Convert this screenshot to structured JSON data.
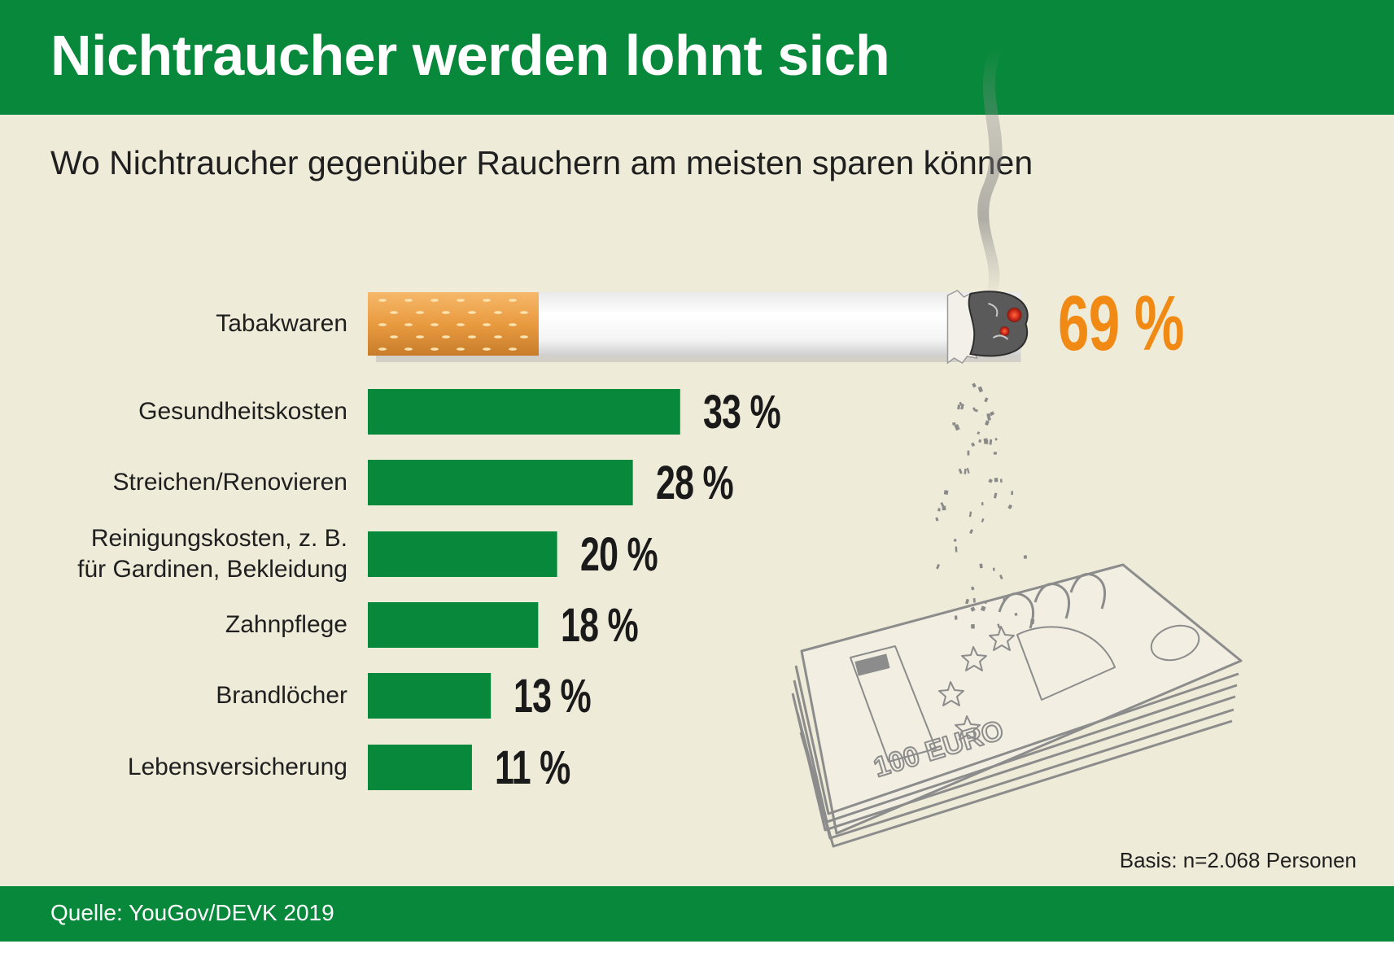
{
  "header": {
    "title": "Nichtraucher werden lohnt sich"
  },
  "subtitle": "Wo Nichtraucher gegenüber Rauchern am meisten sparen können",
  "chart_data": {
    "type": "bar",
    "orientation": "horizontal",
    "categories": [
      "Tabakwaren",
      "Gesundheitskosten",
      "Streichen/Renovieren",
      "Reinigungskosten, z. B.|für Gardinen, Bekleidung",
      "Zahnpflege",
      "Brandlöcher",
      "Lebensversicherung"
    ],
    "values": [
      69,
      33,
      28,
      20,
      18,
      13,
      11
    ],
    "value_labels": [
      "69 %",
      "33 %",
      "28 %",
      "20 %",
      "18 %",
      "13 %",
      "11 %"
    ],
    "unit": "%",
    "highlight_index": 0,
    "highlight_style": "cigarette",
    "xlim": [
      0,
      100
    ],
    "colors": {
      "bar": "#07883a",
      "highlight_label": "#f08a14",
      "label": "#1a1a1a"
    },
    "grid": false,
    "legend": "none"
  },
  "footnote": "Basis: n=2.068 Personen",
  "footer": {
    "source": "Quelle: YouGov/DEVK 2019"
  },
  "colors": {
    "brand": "#07883a",
    "background": "#efebd9"
  },
  "illustration": {
    "icon": "burning-cigarette-over-banknotes-icon",
    "banknote_text": "100 EURO"
  }
}
